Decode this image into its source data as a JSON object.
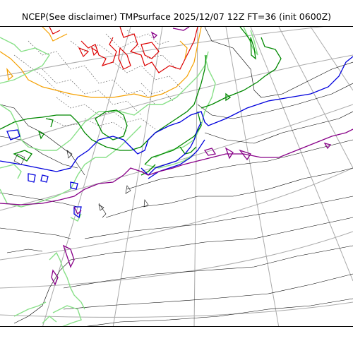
{
  "figure": {
    "title": "NCEP(See disclaimer) TMPsurface 2025/12/07 12Z FT=36 (init 0600Z)"
  },
  "map": {
    "projection": "polar-stereographic",
    "region": "Japan and Northwest Pacific",
    "contour_colors": {
      "coastline": "#000000",
      "isotherm_dashed": "#555555",
      "red": "#dd0000",
      "orange": "#f5a000",
      "light_green": "#88e088",
      "green": "#008800",
      "blue": "#0000dd",
      "purple": "#880088",
      "graticule": "#aaaaaa"
    }
  }
}
